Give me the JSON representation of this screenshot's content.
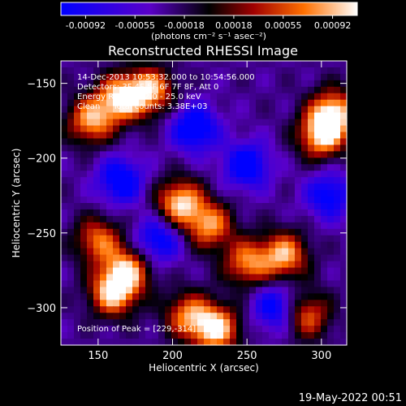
{
  "chart_data": {
    "type": "heatmap",
    "title": "Reconstructed RHESSI Image",
    "xlabel": "Heliocentric X (arcsec)",
    "ylabel": "Heliocentric Y (arcsec)",
    "xlim": [
      125,
      317
    ],
    "ylim": [
      -325,
      -135
    ],
    "x_ticks": [
      150,
      200,
      250,
      300
    ],
    "y_ticks": [
      -150,
      -200,
      -250,
      -300
    ],
    "colorbar": {
      "ticks": [
        "-0.00092",
        "-0.00055",
        "-0.00018",
        "0.00018",
        "0.00055",
        "0.00092"
      ],
      "units": "(photons cm⁻² s⁻¹ asec⁻²)",
      "min": -0.00092,
      "max": 0.00092
    },
    "annotations": {
      "time_range": "14-Dec-2013 10:53:32.000 to 10:54:56.000",
      "detectors": "Detectors: 3F 4F 5F 6F 7F 8F, Att 0",
      "energy": "Energy Range: 12.0 - 25.0 keV",
      "clean": "Clean     Total counts: 3.38E+03",
      "peak": "Position of Peak = [229,-314]"
    },
    "peak": {
      "x": 229,
      "y": -314
    },
    "hotspots": [
      {
        "x": 145,
        "y": -175,
        "value": 0.7
      },
      {
        "x": 165,
        "y": -160,
        "value": 0.85
      },
      {
        "x": 185,
        "y": -155,
        "value": 0.75
      },
      {
        "x": 150,
        "y": -255,
        "value": 0.55
      },
      {
        "x": 160,
        "y": -290,
        "value": 0.85
      },
      {
        "x": 170,
        "y": -275,
        "value": 0.7
      },
      {
        "x": 205,
        "y": -230,
        "value": 0.85
      },
      {
        "x": 225,
        "y": -245,
        "value": 0.65
      },
      {
        "x": 250,
        "y": -270,
        "value": 0.6
      },
      {
        "x": 275,
        "y": -265,
        "value": 0.75
      },
      {
        "x": 300,
        "y": -185,
        "value": 0.8
      },
      {
        "x": 308,
        "y": -170,
        "value": 0.85
      },
      {
        "x": 229,
        "y": -314,
        "value": 0.92
      },
      {
        "x": 210,
        "y": -305,
        "value": 0.55
      },
      {
        "x": 290,
        "y": -305,
        "value": 0.55
      }
    ],
    "coldspots": [
      {
        "x": 165,
        "y": -215,
        "value": -0.5
      },
      {
        "x": 215,
        "y": -180,
        "value": -0.55
      },
      {
        "x": 250,
        "y": -205,
        "value": -0.5
      },
      {
        "x": 190,
        "y": -255,
        "value": -0.45
      },
      {
        "x": 305,
        "y": -225,
        "value": -0.4
      },
      {
        "x": 270,
        "y": -300,
        "value": -0.45
      }
    ]
  },
  "footer": {
    "timestamp": "19-May-2022 00:51"
  }
}
